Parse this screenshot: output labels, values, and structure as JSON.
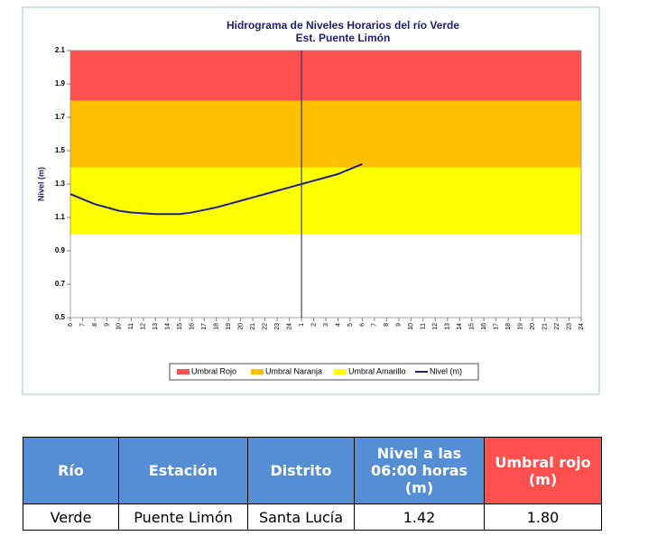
{
  "chart_data": {
    "type": "line",
    "title": "Hidrograma de Niveles Horarios del río Verde",
    "subtitle": "Est. Puente Limón",
    "ylabel": "Nivel (m)",
    "categories": [
      "6",
      "7",
      "8",
      "9",
      "10",
      "11",
      "12",
      "13",
      "14",
      "15",
      "16",
      "17",
      "18",
      "19",
      "20",
      "21",
      "22",
      "23",
      "24",
      "1",
      "2",
      "3",
      "4",
      "5",
      "6",
      "7",
      "8",
      "9",
      "10",
      "11",
      "12",
      "13",
      "14",
      "15",
      "16",
      "17",
      "18",
      "19",
      "20",
      "21",
      "22",
      "23",
      "24"
    ],
    "ylim": [
      0.5,
      2.1
    ],
    "yticks": [
      0.5,
      0.7,
      0.9,
      1.1,
      1.3,
      1.5,
      1.7,
      1.9,
      2.1
    ],
    "thresholds": [
      {
        "name": "Umbral Rojo",
        "color": "#ff5050",
        "from": 1.8,
        "to": 2.1
      },
      {
        "name": "Umbral Naranja",
        "color": "#ffc000",
        "from": 1.4,
        "to": 1.8
      },
      {
        "name": "Umbral Amarillo",
        "color": "#ffff00",
        "from": 1.0,
        "to": 1.4
      }
    ],
    "vline_at": 19,
    "series": [
      {
        "name": "Nivel (m)",
        "color": "#1f1f8f",
        "values": [
          1.24,
          1.21,
          1.18,
          1.16,
          1.14,
          1.13,
          1.125,
          1.12,
          1.12,
          1.12,
          1.13,
          1.145,
          1.16,
          1.18,
          1.2,
          1.22,
          1.24,
          1.26,
          1.28,
          1.3,
          1.32,
          1.34,
          1.36,
          1.39,
          1.42,
          null,
          null,
          null,
          null,
          null,
          null,
          null,
          null,
          null,
          null,
          null,
          null,
          null,
          null,
          null,
          null,
          null,
          null
        ]
      }
    ]
  },
  "table": {
    "header": [
      "Río",
      "Estación",
      "Distrito",
      "Nivel a las 06:00 horas (m)",
      "Umbral rojo (m)"
    ],
    "rows": [
      [
        "Verde",
        "Puente Limón",
        "Santa Lucía",
        "1.42",
        "1.80"
      ]
    ]
  }
}
